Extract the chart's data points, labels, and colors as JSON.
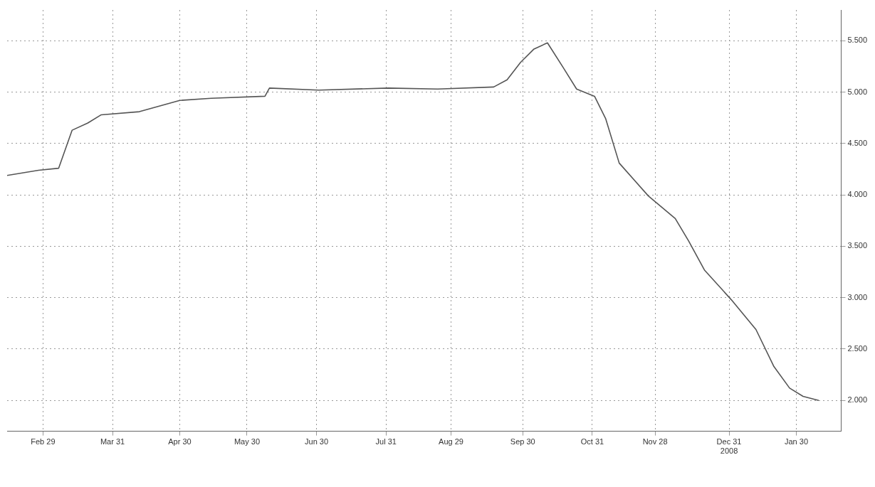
{
  "chart_data": {
    "type": "line",
    "x": [
      "2008-02-13",
      "2008-02-27",
      "2008-03-07",
      "2008-03-13",
      "2008-03-20",
      "2008-03-26",
      "2008-04-12",
      "2008-04-30",
      "2008-05-14",
      "2008-06-07",
      "2008-06-09",
      "2008-07-01",
      "2008-08-01",
      "2008-08-23",
      "2008-09-17",
      "2008-09-23",
      "2008-09-29",
      "2008-10-05",
      "2008-10-11",
      "2008-10-18",
      "2008-10-24",
      "2008-11-01",
      "2008-11-06",
      "2008-11-12",
      "2008-11-25",
      "2008-12-07",
      "2008-12-13",
      "2008-12-20",
      "2009-01-01",
      "2009-01-12",
      "2009-01-20",
      "2009-01-27",
      "2009-02-02",
      "2009-02-09"
    ],
    "series": [
      {
        "color": "#555555",
        "values": [
          4.19,
          4.24,
          4.26,
          4.63,
          4.7,
          4.78,
          4.81,
          4.92,
          4.94,
          4.96,
          5.04,
          5.02,
          5.04,
          5.03,
          5.05,
          5.12,
          5.29,
          5.42,
          5.48,
          5.24,
          5.03,
          4.96,
          4.74,
          4.31,
          3.99,
          3.77,
          3.55,
          3.27,
          2.98,
          2.69,
          2.33,
          2.12,
          2.04,
          2.0
        ]
      }
    ],
    "xlim": [
      "2008-02-13",
      "2009-02-19"
    ],
    "xticks": [
      {
        "value": "2008-02-29",
        "label": "Feb 29"
      },
      {
        "value": "2008-03-31",
        "label": "Mar 31"
      },
      {
        "value": "2008-04-30",
        "label": "Apr 30"
      },
      {
        "value": "2008-05-30",
        "label": "May 30"
      },
      {
        "value": "2008-06-30",
        "label": "Jun 30"
      },
      {
        "value": "2008-07-31",
        "label": "Jul 31"
      },
      {
        "value": "2008-08-29",
        "label": "Aug 29"
      },
      {
        "value": "2008-09-30",
        "label": "Sep 30"
      },
      {
        "value": "2008-10-31",
        "label": "Oct 31"
      },
      {
        "value": "2008-11-28",
        "label": "Nov 28"
      },
      {
        "value": "2008-12-31",
        "label": "Dec 31\n2008"
      },
      {
        "value": "2009-01-30",
        "label": "Jan 30"
      }
    ],
    "ylim": [
      1.7,
      5.8
    ],
    "yticks": [
      {
        "value": 2,
        "label": "2.000"
      },
      {
        "value": 2.5,
        "label": "2.500"
      },
      {
        "value": 3,
        "label": "3.000"
      },
      {
        "value": 3.5,
        "label": "3.500"
      },
      {
        "value": 4,
        "label": "4.000"
      },
      {
        "value": 4.5,
        "label": "4.500"
      },
      {
        "value": 5,
        "label": "5.000"
      },
      {
        "value": 5.5,
        "label": "5.500"
      }
    ],
    "grid": true,
    "legend": false,
    "marker": "none",
    "line_style": "solid"
  }
}
